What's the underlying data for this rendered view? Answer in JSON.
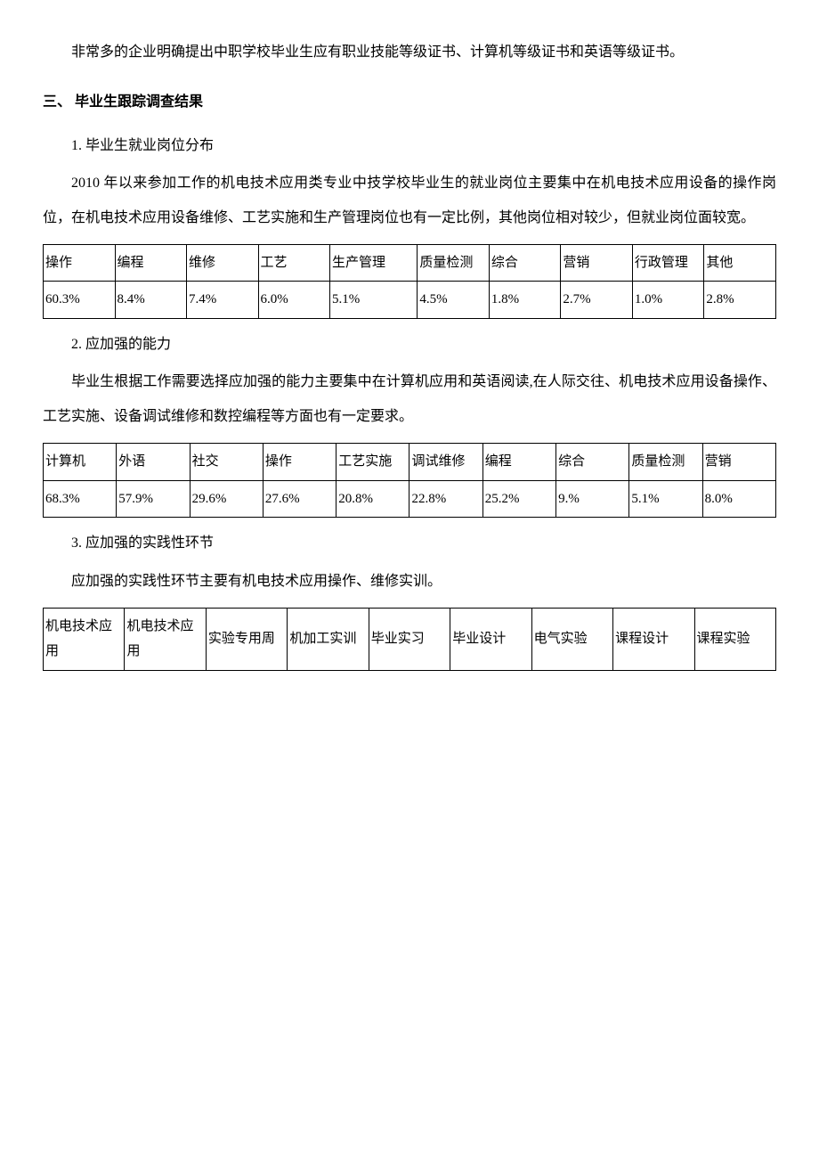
{
  "intro_para": "非常多的企业明确提出中职学校毕业生应有职业技能等级证书、计算机等级证书和英语等级证书。",
  "section3_title": "三、 毕业生跟踪调查结果",
  "sub1_title": "1. 毕业生就业岗位分布",
  "sub1_para": "2010 年以来参加工作的机电技术应用类专业中技学校毕业生的就业岗位主要集中在机电技术应用设备的操作岗位，在机电技术应用设备维修、工艺实施和生产管理岗位也有一定比例，其他岗位相对较少，但就业岗位面较宽。",
  "table1": {
    "headers": [
      "操作",
      "编程",
      "维修",
      "工艺",
      "生产管理",
      "质量检测",
      "综合",
      "营销",
      "行政管理",
      "其他"
    ],
    "values": [
      "60.3%",
      "8.4%",
      "7.4%",
      "6.0%",
      "5.1%",
      "4.5%",
      "1.8%",
      "2.7%",
      "1.0%",
      "2.8%"
    ]
  },
  "sub2_title": "2. 应加强的能力",
  "sub2_para": "毕业生根据工作需要选择应加强的能力主要集中在计算机应用和英语阅读,在人际交往、机电技术应用设备操作、工艺实施、设备调试维修和数控编程等方面也有一定要求。",
  "table2": {
    "headers": [
      "计算机",
      "外语",
      "社交",
      "操作",
      "工艺实施",
      "调试维修",
      "编程",
      "综合",
      "质量检测",
      "营销"
    ],
    "values": [
      "68.3%",
      "57.9%",
      "29.6%",
      "27.6%",
      "20.8%",
      "22.8%",
      "25.2%",
      "9.%",
      "5.1%",
      "8.0%"
    ]
  },
  "sub3_title": "3. 应加强的实践性环节",
  "sub3_para": "应加强的实践性环节主要有机电技术应用操作、维修实训。",
  "table3": {
    "headers": [
      "机电技术应用",
      "机电技术应用",
      "实验专用周",
      "机加工实训",
      "毕业实习",
      "毕业设计",
      "电气实验",
      "课程设计",
      "课程实验"
    ]
  }
}
